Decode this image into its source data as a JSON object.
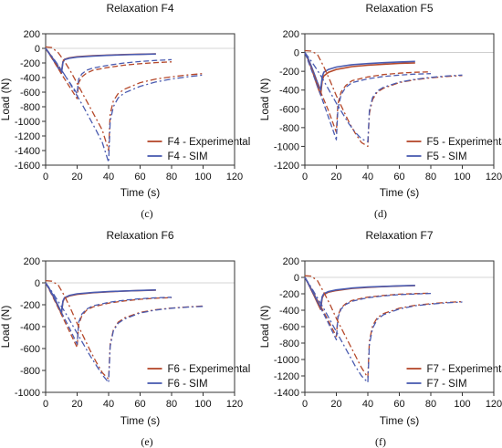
{
  "colors": {
    "experimental": "#b5482a",
    "sim": "#4a5bb0",
    "axis": "#333333"
  },
  "chart_data": [
    {
      "type": "line",
      "title": "Relaxation F4",
      "caption": "(c)",
      "xlabel": "Time (s)",
      "ylabel": "Load (N)",
      "xlim": [
        0,
        120
      ],
      "ylim": [
        -1600,
        200
      ],
      "xticks": [
        0,
        20,
        40,
        60,
        80,
        100,
        120
      ],
      "yticks": [
        200,
        0,
        -200,
        -400,
        -600,
        -800,
        -1000,
        -1200,
        -1400,
        -1600
      ],
      "legend": [
        "F4 - Experimental",
        "F4 - SIM"
      ],
      "series": [
        {
          "name": "F4 - Experimental",
          "style": "solid",
          "x": [
            0,
            2,
            4,
            6,
            8,
            10,
            11,
            12,
            15,
            20,
            30,
            40,
            50,
            60,
            70
          ],
          "y": [
            0,
            -60,
            -120,
            -190,
            -260,
            -330,
            -180,
            -150,
            -130,
            -115,
            -100,
            -92,
            -85,
            -80,
            -75
          ]
        },
        {
          "name": "F4 - SIM",
          "style": "solid",
          "x": [
            0,
            2,
            4,
            6,
            8,
            10,
            11,
            12,
            15,
            20,
            30,
            40,
            50,
            60,
            70
          ],
          "y": [
            0,
            -65,
            -130,
            -200,
            -270,
            -340,
            -190,
            -155,
            -135,
            -120,
            -105,
            -95,
            -88,
            -82,
            -77
          ]
        },
        {
          "name": "F4 - Experimental",
          "style": "dash",
          "x": [
            0,
            5,
            10,
            15,
            20,
            21,
            23,
            26,
            30,
            40,
            50,
            60,
            70,
            80
          ],
          "y": [
            0,
            -170,
            -350,
            -520,
            -690,
            -470,
            -390,
            -340,
            -300,
            -260,
            -230,
            -210,
            -195,
            -185
          ]
        },
        {
          "name": "F4 - SIM",
          "style": "dash",
          "x": [
            0,
            5,
            10,
            15,
            20,
            21,
            23,
            26,
            30,
            40,
            50,
            60,
            70,
            80
          ],
          "y": [
            0,
            -150,
            -300,
            -460,
            -620,
            -420,
            -350,
            -300,
            -270,
            -230,
            -200,
            -180,
            -165,
            -155
          ]
        },
        {
          "name": "F4 - Experimental",
          "style": "dashdot",
          "x": [
            0,
            4,
            8,
            12,
            16,
            20,
            24,
            28,
            32,
            36,
            40,
            41,
            43,
            46,
            50,
            60,
            70,
            80,
            90,
            100
          ],
          "y": [
            20,
            10,
            -60,
            -180,
            -320,
            -480,
            -640,
            -800,
            -960,
            -1120,
            -1400,
            -900,
            -720,
            -620,
            -560,
            -470,
            -420,
            -390,
            -365,
            -345
          ]
        },
        {
          "name": "F4 - SIM",
          "style": "dashdot",
          "x": [
            0,
            4,
            8,
            12,
            16,
            20,
            24,
            28,
            32,
            36,
            40,
            41,
            43,
            46,
            50,
            60,
            70,
            80,
            90,
            100
          ],
          "y": [
            0,
            -110,
            -230,
            -360,
            -500,
            -650,
            -800,
            -960,
            -1120,
            -1290,
            -1560,
            -1000,
            -800,
            -680,
            -610,
            -520,
            -460,
            -420,
            -390,
            -365
          ]
        }
      ]
    },
    {
      "type": "line",
      "title": "Relaxation F5",
      "caption": "(d)",
      "xlabel": "Time (s)",
      "ylabel": "Load (N)",
      "xlim": [
        0,
        120
      ],
      "ylim": [
        -1200,
        200
      ],
      "xticks": [
        0,
        20,
        40,
        60,
        80,
        100,
        120
      ],
      "yticks": [
        200,
        0,
        -200,
        -400,
        -600,
        -800,
        -1000,
        -1200
      ],
      "legend": [
        "F5 - Experimental",
        "F5 - SIM"
      ],
      "series": [
        {
          "name": "F5 - Experimental",
          "style": "solid",
          "x": [
            0,
            2,
            4,
            6,
            8,
            10,
            11,
            12,
            15,
            20,
            30,
            40,
            50,
            60,
            70
          ],
          "y": [
            0,
            -70,
            -160,
            -260,
            -360,
            -450,
            -300,
            -250,
            -210,
            -180,
            -150,
            -135,
            -125,
            -115,
            -110
          ]
        },
        {
          "name": "F5 - SIM",
          "style": "solid",
          "x": [
            0,
            2,
            4,
            6,
            8,
            10,
            11,
            12,
            15,
            20,
            30,
            40,
            50,
            60,
            70
          ],
          "y": [
            0,
            -60,
            -140,
            -230,
            -320,
            -400,
            -260,
            -210,
            -180,
            -155,
            -130,
            -118,
            -108,
            -100,
            -95
          ]
        },
        {
          "name": "F5 - Experimental",
          "style": "dash",
          "x": [
            0,
            5,
            10,
            15,
            20,
            21,
            23,
            26,
            30,
            40,
            50,
            60,
            70,
            80
          ],
          "y": [
            0,
            -200,
            -420,
            -620,
            -850,
            -550,
            -420,
            -350,
            -300,
            -260,
            -235,
            -220,
            -210,
            -205
          ]
        },
        {
          "name": "F5 - SIM",
          "style": "dash",
          "x": [
            0,
            5,
            10,
            15,
            20,
            21,
            23,
            26,
            30,
            40,
            50,
            60,
            70,
            80
          ],
          "y": [
            0,
            -220,
            -450,
            -690,
            -930,
            -600,
            -450,
            -370,
            -320,
            -280,
            -255,
            -240,
            -230,
            -225
          ]
        },
        {
          "name": "F5 - Experimental",
          "style": "dashdot",
          "x": [
            0,
            4,
            8,
            12,
            16,
            20,
            24,
            28,
            32,
            36,
            40,
            41,
            43,
            46,
            50,
            60,
            70,
            80,
            90,
            100
          ],
          "y": [
            20,
            15,
            -20,
            -150,
            -300,
            -460,
            -600,
            -740,
            -860,
            -960,
            -1000,
            -650,
            -500,
            -420,
            -380,
            -320,
            -290,
            -270,
            -255,
            -245
          ]
        },
        {
          "name": "F5 - SIM",
          "style": "dashdot",
          "x": [
            0,
            4,
            8,
            12,
            16,
            20,
            24,
            28,
            32,
            36,
            40,
            41,
            43,
            46,
            50,
            60,
            70,
            80,
            90,
            100
          ],
          "y": [
            0,
            -90,
            -190,
            -300,
            -420,
            -540,
            -650,
            -760,
            -850,
            -920,
            -950,
            -620,
            -480,
            -410,
            -370,
            -315,
            -285,
            -265,
            -250,
            -240
          ]
        }
      ]
    },
    {
      "type": "line",
      "title": "Relaxation F6",
      "caption": "(e)",
      "xlabel": "Time (s)",
      "ylabel": "Load (N)",
      "xlim": [
        0,
        120
      ],
      "ylim": [
        -1000,
        200
      ],
      "xticks": [
        0,
        20,
        40,
        60,
        80,
        100,
        120
      ],
      "yticks": [
        200,
        0,
        -200,
        -400,
        -600,
        -800,
        -1000
      ],
      "legend": [
        "F6 - Experimental",
        "F6 - SIM"
      ],
      "series": [
        {
          "name": "F6 - Experimental",
          "style": "solid",
          "x": [
            0,
            2,
            4,
            6,
            8,
            10,
            11,
            12,
            15,
            20,
            30,
            40,
            50,
            60,
            70
          ],
          "y": [
            0,
            -50,
            -100,
            -160,
            -220,
            -280,
            -170,
            -140,
            -120,
            -105,
            -90,
            -82,
            -75,
            -70,
            -66
          ]
        },
        {
          "name": "F6 - SIM",
          "style": "solid",
          "x": [
            0,
            2,
            4,
            6,
            8,
            10,
            11,
            12,
            15,
            20,
            30,
            40,
            50,
            60,
            70
          ],
          "y": [
            0,
            -45,
            -95,
            -150,
            -210,
            -270,
            -165,
            -135,
            -115,
            -100,
            -88,
            -80,
            -74,
            -69,
            -65
          ]
        },
        {
          "name": "F6 - Experimental",
          "style": "dash",
          "x": [
            0,
            5,
            10,
            15,
            20,
            21,
            23,
            26,
            30,
            40,
            50,
            60,
            70,
            80
          ],
          "y": [
            0,
            -140,
            -290,
            -440,
            -590,
            -380,
            -300,
            -250,
            -220,
            -185,
            -165,
            -150,
            -140,
            -135
          ]
        },
        {
          "name": "F6 - SIM",
          "style": "dash",
          "x": [
            0,
            5,
            10,
            15,
            20,
            21,
            23,
            26,
            30,
            40,
            50,
            60,
            70,
            80
          ],
          "y": [
            0,
            -130,
            -270,
            -410,
            -560,
            -360,
            -285,
            -240,
            -210,
            -178,
            -158,
            -145,
            -137,
            -132
          ]
        },
        {
          "name": "F6 - Experimental",
          "style": "dashdot",
          "x": [
            0,
            4,
            8,
            12,
            16,
            20,
            24,
            28,
            32,
            36,
            40,
            41,
            43,
            46,
            50,
            60,
            70,
            80,
            90,
            100
          ],
          "y": [
            20,
            15,
            -20,
            -120,
            -240,
            -370,
            -490,
            -610,
            -720,
            -820,
            -880,
            -560,
            -430,
            -360,
            -320,
            -270,
            -245,
            -230,
            -220,
            -212
          ]
        },
        {
          "name": "F6 - SIM",
          "style": "dashdot",
          "x": [
            0,
            4,
            8,
            12,
            16,
            20,
            24,
            28,
            32,
            36,
            40,
            41,
            43,
            46,
            50,
            60,
            70,
            80,
            90,
            100
          ],
          "y": [
            0,
            -80,
            -170,
            -260,
            -360,
            -460,
            -560,
            -660,
            -750,
            -840,
            -910,
            -580,
            -440,
            -370,
            -330,
            -275,
            -248,
            -232,
            -222,
            -215
          ]
        }
      ]
    },
    {
      "type": "line",
      "title": "Relaxation F7",
      "caption": "(f)",
      "xlabel": "Time (s)",
      "ylabel": "Load (N)",
      "xlim": [
        0,
        120
      ],
      "ylim": [
        -1400,
        200
      ],
      "xticks": [
        0,
        20,
        40,
        60,
        80,
        100,
        120
      ],
      "yticks": [
        200,
        0,
        -200,
        -400,
        -600,
        -800,
        -1000,
        -1200,
        -1400
      ],
      "legend": [
        "F7 - Experimental",
        "F7 - SIM"
      ],
      "series": [
        {
          "name": "F7 - Experimental",
          "style": "solid",
          "x": [
            0,
            2,
            4,
            6,
            8,
            10,
            11,
            12,
            15,
            20,
            30,
            40,
            50,
            60,
            70
          ],
          "y": [
            0,
            -70,
            -150,
            -230,
            -310,
            -390,
            -250,
            -210,
            -180,
            -160,
            -135,
            -122,
            -112,
            -105,
            -100
          ]
        },
        {
          "name": "F7 - SIM",
          "style": "solid",
          "x": [
            0,
            2,
            4,
            6,
            8,
            10,
            11,
            12,
            15,
            20,
            30,
            40,
            50,
            60,
            70
          ],
          "y": [
            0,
            -65,
            -140,
            -215,
            -290,
            -360,
            -235,
            -200,
            -172,
            -152,
            -130,
            -118,
            -110,
            -103,
            -98
          ]
        },
        {
          "name": "F7 - Experimental",
          "style": "dash",
          "x": [
            0,
            5,
            10,
            15,
            20,
            21,
            23,
            26,
            30,
            40,
            50,
            60,
            70,
            80
          ],
          "y": [
            0,
            -170,
            -350,
            -530,
            -720,
            -470,
            -370,
            -320,
            -280,
            -240,
            -220,
            -205,
            -198,
            -192
          ]
        },
        {
          "name": "F7 - SIM",
          "style": "dash",
          "x": [
            0,
            5,
            10,
            15,
            20,
            21,
            23,
            26,
            30,
            40,
            50,
            60,
            70,
            80
          ],
          "y": [
            0,
            -180,
            -370,
            -560,
            -760,
            -490,
            -385,
            -330,
            -290,
            -248,
            -226,
            -210,
            -202,
            -196
          ]
        },
        {
          "name": "F7 - Experimental",
          "style": "dashdot",
          "x": [
            0,
            4,
            8,
            12,
            16,
            20,
            24,
            28,
            32,
            36,
            40,
            41,
            43,
            46,
            50,
            60,
            70,
            80,
            90,
            100
          ],
          "y": [
            20,
            15,
            -40,
            -180,
            -330,
            -500,
            -650,
            -800,
            -950,
            -1100,
            -1220,
            -780,
            -590,
            -490,
            -440,
            -375,
            -340,
            -320,
            -305,
            -295
          ]
        },
        {
          "name": "F7 - SIM",
          "style": "dashdot",
          "x": [
            0,
            4,
            8,
            12,
            16,
            20,
            24,
            28,
            32,
            36,
            40,
            41,
            43,
            46,
            50,
            60,
            70,
            80,
            90,
            100
          ],
          "y": [
            0,
            -120,
            -250,
            -380,
            -520,
            -660,
            -800,
            -940,
            -1080,
            -1200,
            -1280,
            -820,
            -620,
            -510,
            -455,
            -385,
            -345,
            -325,
            -310,
            -300
          ]
        }
      ]
    }
  ]
}
